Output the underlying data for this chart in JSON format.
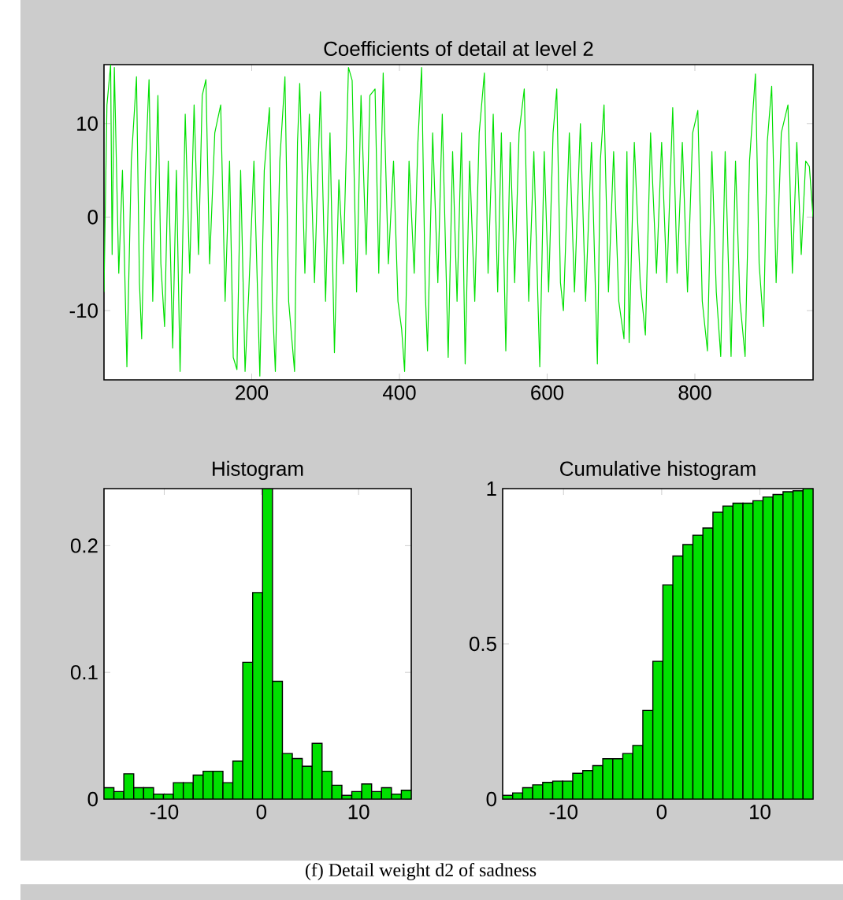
{
  "chart_data": [
    {
      "type": "line",
      "title": "Coefficients of detail at level 2",
      "color": "#00e000",
      "xlim": [
        0,
        960
      ],
      "ylim": [
        -17.4,
        16.3
      ],
      "xticks": [
        200,
        400,
        600,
        800
      ],
      "yticks": [
        -10,
        0,
        10
      ],
      "annotations": [
        "(f) Detail weight d2 of sadness"
      ],
      "x": [
        0,
        4,
        9,
        11,
        14,
        20,
        25,
        31,
        37,
        44,
        48,
        51,
        56,
        61,
        66,
        73,
        77,
        82,
        87,
        93,
        98,
        103,
        110,
        116,
        122,
        128,
        133,
        138,
        143,
        150,
        158,
        164,
        170,
        175,
        180,
        185,
        191,
        196,
        203,
        211,
        217,
        224,
        228,
        232,
        238,
        245,
        250,
        258,
        262,
        265,
        272,
        278,
        285,
        293,
        300,
        306,
        312,
        318,
        324,
        331,
        336,
        342,
        348,
        355,
        360,
        367,
        372,
        378,
        385,
        392,
        398,
        403,
        407,
        413,
        420,
        425,
        430,
        435,
        438,
        445,
        452,
        458,
        466,
        472,
        478,
        484,
        489,
        495,
        502,
        508,
        515,
        520,
        527,
        533,
        538,
        544,
        550,
        556,
        562,
        569,
        575,
        582,
        590,
        596,
        602,
        608,
        613,
        618,
        622,
        630,
        637,
        645,
        652,
        660,
        668,
        672,
        677,
        683,
        690,
        697,
        704,
        708,
        711,
        718,
        726,
        733,
        740,
        748,
        755,
        762,
        770,
        776,
        783,
        790,
        797,
        804,
        810,
        817,
        823,
        829,
        835,
        841,
        849,
        855,
        861,
        868,
        874,
        882,
        887,
        893,
        898,
        904,
        910,
        917,
        926,
        932,
        938,
        944,
        950,
        955,
        960
      ],
      "values": [
        -8,
        12,
        16.3,
        -4,
        16,
        -6,
        5,
        -16,
        6,
        15,
        -7,
        -13,
        5,
        14.7,
        -9,
        13,
        -5,
        -11.7,
        6,
        -14,
        5,
        -16.5,
        11,
        -6,
        12,
        -4,
        13,
        14.7,
        -5,
        9,
        12,
        -9,
        6,
        -15,
        -16.3,
        5,
        -16.5,
        -8,
        6,
        -17,
        5,
        11.7,
        -9,
        -16.5,
        6,
        15,
        -9,
        -16.5,
        8,
        14.3,
        -6,
        11,
        -7,
        13.4,
        -9,
        9,
        -14.5,
        4,
        -5,
        16,
        14.6,
        -8,
        13,
        -4,
        13,
        13.7,
        -6,
        15.4,
        -5,
        6,
        -9,
        -12,
        -16.5,
        6,
        -6,
        8,
        16,
        -8,
        -14.3,
        9,
        -7,
        11,
        -15,
        7,
        -9,
        9,
        -15.7,
        6,
        -9,
        9,
        15.4,
        -6,
        11,
        -8,
        9,
        -14.3,
        8,
        -7,
        9,
        13.7,
        -9,
        7,
        -16,
        7,
        -8,
        9,
        13.7,
        -7,
        -10,
        9,
        -8,
        10,
        -9,
        8,
        -15.7,
        6,
        12,
        -8,
        7,
        -9,
        -13,
        7,
        -13.4,
        8,
        -7,
        -12.6,
        9,
        -6,
        8,
        -7,
        11.7,
        -6,
        8,
        -8,
        9,
        11.4,
        -9,
        -14.3,
        7,
        -8,
        -14.9,
        7,
        -14.9,
        6,
        -9,
        -14.9,
        6,
        15.3,
        -5,
        -11.7,
        8,
        14,
        -7,
        9,
        12,
        -6,
        8,
        -4,
        6,
        5.4,
        0
      ]
    },
    {
      "type": "histogram",
      "title": "Histogram",
      "color": "#00e000",
      "xlim": [
        -16.2,
        15.42
      ],
      "ylim": [
        0,
        0.245
      ],
      "xticks": [
        -10,
        0,
        10
      ],
      "yticks": [
        0,
        0.1,
        0.2
      ],
      "bins": [
        -16.2,
        -15.18,
        -14.16,
        -13.14,
        -12.12,
        -11.1,
        -10.08,
        -9.06,
        -8.04,
        -7.02,
        -6,
        -4.98,
        -3.96,
        -2.94,
        -1.92,
        -0.9,
        0.12,
        1.14,
        2.16,
        3.18,
        4.2,
        5.22,
        6.24,
        7.26,
        8.28,
        9.3,
        10.32,
        11.34,
        12.36,
        13.38,
        14.4,
        15.42
      ],
      "values": [
        0.009,
        0.006,
        0.02,
        0.009,
        0.009,
        0.004,
        0.004,
        0.013,
        0.013,
        0.019,
        0.022,
        0.022,
        0.013,
        0.03,
        0.108,
        0.163,
        0.245,
        0.093,
        0.036,
        0.032,
        0.026,
        0.044,
        0.022,
        0.011,
        0.003,
        0.006,
        0.012,
        0.006,
        0.009,
        0.004,
        0.007
      ]
    },
    {
      "type": "histogram",
      "title": "Cumulative histogram",
      "color": "#00e000",
      "xlim": [
        -16.2,
        15.42
      ],
      "ylim": [
        0,
        1
      ],
      "xticks": [
        -10,
        0,
        10
      ],
      "yticks": [
        0,
        0.5,
        1
      ],
      "bins": [
        -16.2,
        -15.18,
        -14.16,
        -13.14,
        -12.12,
        -11.1,
        -10.08,
        -9.06,
        -8.04,
        -7.02,
        -6,
        -4.98,
        -3.96,
        -2.94,
        -1.92,
        -0.9,
        0.12,
        1.14,
        2.16,
        3.18,
        4.2,
        5.22,
        6.24,
        7.26,
        8.28,
        9.3,
        10.32,
        11.34,
        12.36,
        13.38,
        14.4,
        15.42
      ],
      "values": [
        0.012,
        0.02,
        0.037,
        0.046,
        0.054,
        0.058,
        0.058,
        0.083,
        0.092,
        0.108,
        0.13,
        0.13,
        0.147,
        0.173,
        0.286,
        0.444,
        0.69,
        0.783,
        0.82,
        0.85,
        0.873,
        0.924,
        0.944,
        0.953,
        0.953,
        0.961,
        0.973,
        0.981,
        0.99,
        0.993,
        1.0
      ]
    }
  ]
}
